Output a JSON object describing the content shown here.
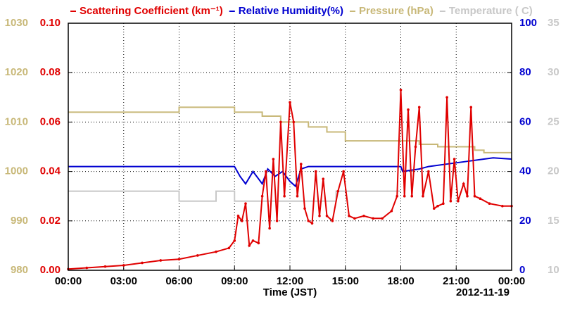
{
  "chart_data": {
    "type": "line",
    "x_label": "Time (JST)",
    "date_label": "2012-11-19",
    "xlim": [
      0,
      24
    ],
    "xticks": [
      {
        "value": 0,
        "label": "00:00"
      },
      {
        "value": 3,
        "label": "03:00"
      },
      {
        "value": 6,
        "label": "06:00"
      },
      {
        "value": 9,
        "label": "09:00"
      },
      {
        "value": 12,
        "label": "12:00"
      },
      {
        "value": 15,
        "label": "15:00"
      },
      {
        "value": 18,
        "label": "18:00"
      },
      {
        "value": 21,
        "label": "21:00"
      },
      {
        "value": 24,
        "label": "00:00"
      }
    ],
    "ylim": [
      0,
      0.1
    ],
    "yticks": [
      {
        "value": 0,
        "label": "0.00"
      },
      {
        "value": 0.02,
        "label": "0.02"
      },
      {
        "value": 0.04,
        "label": "0.04"
      },
      {
        "value": 0.06,
        "label": "0.06"
      },
      {
        "value": 0.08,
        "label": "0.08"
      },
      {
        "value": 0.1,
        "label": "0.10"
      }
    ],
    "y2lim": [
      0,
      100
    ],
    "y2ticks": [
      0,
      20,
      40,
      60,
      80,
      100
    ],
    "y3lim": [
      980,
      1030
    ],
    "y3ticks": [
      980,
      990,
      1000,
      1010,
      1020,
      1030
    ],
    "y4lim": [
      10,
      35
    ],
    "y4ticks": [
      10,
      15,
      20,
      25,
      30,
      35
    ],
    "grid": true,
    "series": [
      {
        "name": "Scattering Coefficient (km⁻¹)",
        "color": "#e00000",
        "axis": "y",
        "markers": true,
        "x": [
          0,
          1,
          2,
          3,
          4,
          5,
          6,
          7,
          8,
          8.7,
          9,
          9.2,
          9.4,
          9.6,
          9.8,
          10,
          10.3,
          10.5,
          10.7,
          10.9,
          11.1,
          11.3,
          11.5,
          11.7,
          12,
          12.2,
          12.4,
          12.6,
          12.8,
          13,
          13.2,
          13.4,
          13.6,
          13.8,
          14,
          14.3,
          14.6,
          14.9,
          15.2,
          15.5,
          16,
          16.5,
          17,
          17.5,
          17.8,
          18,
          18.2,
          18.4,
          18.6,
          18.8,
          19,
          19.2,
          19.5,
          19.8,
          20,
          20.3,
          20.5,
          20.7,
          20.9,
          21.1,
          21.4,
          21.6,
          21.8,
          22,
          22.3,
          22.8,
          23.5,
          24
        ],
        "values": [
          0.0005,
          0.001,
          0.0015,
          0.002,
          0.003,
          0.004,
          0.0045,
          0.006,
          0.0075,
          0.009,
          0.012,
          0.022,
          0.02,
          0.027,
          0.01,
          0.012,
          0.011,
          0.03,
          0.04,
          0.017,
          0.045,
          0.02,
          0.06,
          0.03,
          0.068,
          0.06,
          0.03,
          0.043,
          0.025,
          0.02,
          0.019,
          0.04,
          0.022,
          0.037,
          0.022,
          0.02,
          0.032,
          0.04,
          0.022,
          0.021,
          0.022,
          0.021,
          0.021,
          0.024,
          0.03,
          0.073,
          0.03,
          0.065,
          0.03,
          0.05,
          0.066,
          0.03,
          0.04,
          0.025,
          0.026,
          0.027,
          0.07,
          0.028,
          0.045,
          0.028,
          0.035,
          0.03,
          0.066,
          0.03,
          0.029,
          0.027,
          0.026,
          0.026
        ]
      },
      {
        "name": "Relative Humidity(%)",
        "color": "#0000d0",
        "axis": "y2",
        "markers": false,
        "x": [
          0,
          9,
          9.3,
          9.6,
          10,
          10.5,
          10.8,
          11.2,
          11.6,
          12,
          12.3,
          12.6,
          13,
          18,
          18.1,
          19,
          19.5,
          20.5,
          21.5,
          22.5,
          23,
          24
        ],
        "values": [
          42,
          42,
          38,
          35,
          40,
          35,
          41,
          38,
          40,
          36,
          34,
          41,
          42,
          42,
          40,
          41,
          42,
          43,
          44,
          45,
          45.5,
          45
        ]
      },
      {
        "name": "Pressure (hPa)",
        "color": "#c8b878",
        "axis": "y3",
        "markers": false,
        "x": [
          0,
          6,
          6,
          9,
          9,
          10.5,
          10.5,
          11.5,
          11.5,
          13,
          13,
          14,
          14,
          15,
          15,
          19,
          19,
          20,
          20,
          22,
          22,
          22.5,
          22.5,
          24
        ],
        "values": [
          1012,
          1012,
          1013,
          1013,
          1012,
          1012,
          1011.2,
          1011.2,
          1010,
          1010,
          1009,
          1009,
          1008,
          1008,
          1006.2,
          1006.2,
          1005.5,
          1005.5,
          1005,
          1005,
          1004.3,
          1004.3,
          1003.8,
          1003.8
        ]
      },
      {
        "name": "Temperature ( C)",
        "color": "#c8c8c8",
        "axis": "y4",
        "markers": false,
        "x": [
          0,
          6,
          6,
          8,
          8,
          9,
          9,
          14.5,
          14.5,
          18
        ],
        "values": [
          18,
          18,
          17,
          17,
          18,
          18,
          17,
          17,
          18,
          18
        ]
      }
    ]
  }
}
